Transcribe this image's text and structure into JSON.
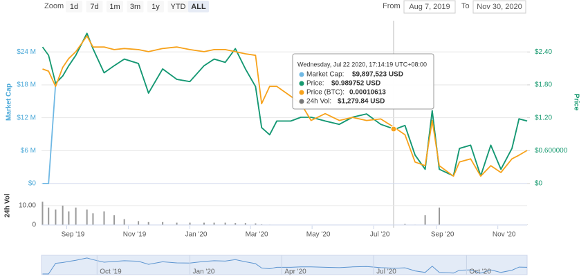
{
  "toolbar": {
    "zoom_label": "Zoom",
    "buttons": [
      "1d",
      "7d",
      "1m",
      "3m",
      "1y",
      "YTD",
      "ALL"
    ],
    "active": "ALL",
    "from_label": "From",
    "from": "Aug 7, 2019",
    "to_label": "To",
    "to": "Nov 30, 2020"
  },
  "tooltip": {
    "header": "Wednesday, Jul 22 2020, 17:14:19 UTC+08:00",
    "items": [
      {
        "label": "Market Cap:",
        "value": "$9,897,523 USD"
      },
      {
        "label": "Price:",
        "value": "$0.989752 USD"
      },
      {
        "label": "Price (BTC):",
        "value": "0.00010613"
      },
      {
        "label": "24h Vol:",
        "value": "$1,279.84 USD"
      }
    ]
  },
  "chart_data": [
    {
      "type": "line",
      "y_label": "Market Cap",
      "y2_label": "Price",
      "x": [
        "2019-08-08",
        "2019-08-14",
        "2019-08-21",
        "2019-08-28",
        "2019-09-03",
        "2019-09-10",
        "2019-09-21",
        "2019-09-27",
        "2019-10-08",
        "2019-10-18",
        "2019-10-28",
        "2019-11-11",
        "2019-11-21",
        "2019-12-05",
        "2019-12-19",
        "2020-01-01",
        "2020-01-15",
        "2020-01-25",
        "2020-02-05",
        "2020-02-15",
        "2020-02-25",
        "2020-03-06",
        "2020-03-12",
        "2020-03-20",
        "2020-03-27",
        "2020-04-10",
        "2020-04-20",
        "2020-04-30",
        "2020-05-14",
        "2020-05-28",
        "2020-06-10",
        "2020-06-24",
        "2020-07-08",
        "2020-07-22",
        "2020-08-01",
        "2020-08-11",
        "2020-08-21",
        "2020-08-28",
        "2020-09-04",
        "2020-09-18",
        "2020-09-24",
        "2020-10-05",
        "2020-10-15",
        "2020-10-25",
        "2020-11-04",
        "2020-11-15",
        "2020-11-22",
        "2020-11-30"
      ],
      "xlim": [
        "2019-08-07",
        "2020-11-30"
      ],
      "xticks": [
        {
          "value": "2019-09-01",
          "label": "Sep '19"
        },
        {
          "value": "2019-11-01",
          "label": "Nov '19"
        },
        {
          "value": "2020-01-01",
          "label": "Jan '20"
        },
        {
          "value": "2020-03-01",
          "label": "Mar '20"
        },
        {
          "value": "2020-05-01",
          "label": "May '20"
        },
        {
          "value": "2020-07-01",
          "label": "Jul '20"
        },
        {
          "value": "2020-09-01",
          "label": "Sep '20"
        },
        {
          "value": "2020-11-01",
          "label": "Nov '20"
        }
      ],
      "ylim": [
        0,
        29700000
      ],
      "yticks": [
        {
          "value": 0,
          "label": "$0"
        },
        {
          "value": 6000000,
          "label": "$6 M"
        },
        {
          "value": 12000000,
          "label": "$12 M"
        },
        {
          "value": 18000000,
          "label": "$18 M"
        },
        {
          "value": 24000000,
          "label": "$24 M"
        }
      ],
      "y2lim": [
        0,
        2.97
      ],
      "y2ticks": [
        {
          "value": 0,
          "label": "$0"
        },
        {
          "value": 0.6,
          "label": "$0.600000"
        },
        {
          "value": 1.2,
          "label": "$1.20"
        },
        {
          "value": 1.8,
          "label": "$1.80"
        },
        {
          "value": 2.4,
          "label": "$2.40"
        }
      ],
      "y3lim": [
        0,
        0.00031
      ],
      "grid": true,
      "series": [
        {
          "color": "#6fb8e4",
          "axis": "y",
          "values": [
            0,
            0,
            18300000,
            19600000,
            21500000,
            23400000,
            27400000,
            24600000,
            20200000,
            21500000,
            22700000,
            21900000,
            16500000,
            20900000,
            19000000,
            18600000,
            21500000,
            22700000,
            22100000,
            24600000,
            20900000,
            17700000,
            10200000,
            8900000,
            11400000,
            11400000,
            12100000,
            12100000,
            11400000,
            10800000,
            12100000,
            12700000,
            10800000,
            9897523,
            10600000,
            5200000,
            2600000,
            13300000,
            2600000,
            1400000,
            6400000,
            7000000,
            1400000,
            7000000,
            2600000,
            6400000,
            11800000,
            11400000
          ]
        },
        {
          "color": "#16996f",
          "axis": "y2",
          "values": [
            2.49,
            2.34,
            1.83,
            1.96,
            2.15,
            2.34,
            2.74,
            2.46,
            2.02,
            2.15,
            2.27,
            2.19,
            1.65,
            2.09,
            1.9,
            1.86,
            2.15,
            2.27,
            2.21,
            2.46,
            2.09,
            1.77,
            1.02,
            0.89,
            1.14,
            1.14,
            1.21,
            1.21,
            1.14,
            1.08,
            1.21,
            1.27,
            1.08,
            0.989752,
            1.06,
            0.52,
            0.26,
            1.33,
            0.26,
            0.14,
            0.64,
            0.7,
            0.14,
            0.7,
            0.26,
            0.64,
            1.18,
            1.14
          ]
        },
        {
          "color": "#f7a21b",
          "axis": "y3",
          "values": [
            0.000218,
            0.000214,
            0.000185,
            0.000221,
            0.000238,
            0.000251,
            0.000281,
            0.00026,
            0.00026,
            0.000255,
            0.000257,
            0.000255,
            0.000251,
            0.000257,
            0.00026,
            0.000255,
            0.000251,
            0.000255,
            0.000255,
            0.000251,
            0.000247,
            0.000244,
            0.000152,
            0.000185,
            0.000185,
            0.000166,
            0.000152,
            0.00012,
            0.000133,
            0.00012,
            0.000126,
            0.00012,
            0.000123,
            0.00010613,
            9.3e-05,
            4.1e-05,
            3.4e-05,
            0.00012,
            3.4e-05,
            1.4e-05,
            4.1e-05,
            4.7e-05,
            1.4e-05,
            3.4e-05,
            2.1e-05,
            4.7e-05,
            5.4e-05,
            6.3e-05
          ]
        }
      ],
      "navigator": {
        "xticks": [
          {
            "value": "2019-10-01",
            "label": "Oct '19"
          },
          {
            "value": "2020-01-01",
            "label": "Jan '20"
          },
          {
            "value": "2020-04-01",
            "label": "Apr '20"
          },
          {
            "value": "2020-07-01",
            "label": "Jul '20"
          },
          {
            "value": "2020-10-01",
            "label": "Oct '20"
          }
        ]
      }
    },
    {
      "type": "bar",
      "y_label": "24h Vol",
      "x": [
        "2019-08-08",
        "2019-08-14",
        "2019-08-21",
        "2019-08-28",
        "2019-09-03",
        "2019-09-10",
        "2019-09-21",
        "2019-09-27",
        "2019-10-08",
        "2019-10-18",
        "2019-10-28",
        "2019-11-11",
        "2019-11-21",
        "2019-12-05",
        "2019-12-19",
        "2020-01-01",
        "2020-01-15",
        "2020-01-25",
        "2020-02-05",
        "2020-02-15",
        "2020-02-25",
        "2020-03-06",
        "2020-03-12",
        "2020-03-20",
        "2020-03-27",
        "2020-04-10",
        "2020-04-20",
        "2020-04-30",
        "2020-05-14",
        "2020-05-28",
        "2020-06-10",
        "2020-06-24",
        "2020-07-08",
        "2020-07-22",
        "2020-08-01",
        "2020-08-11",
        "2020-08-21",
        "2020-08-28",
        "2020-09-04",
        "2020-09-18",
        "2020-09-24",
        "2020-10-05",
        "2020-10-15",
        "2020-10-25",
        "2020-11-04",
        "2020-11-15",
        "2020-11-22",
        "2020-11-30"
      ],
      "xlim": [
        "2019-08-07",
        "2020-11-30"
      ],
      "values": [
        12,
        9,
        8,
        10,
        7,
        9,
        8,
        6,
        7,
        5,
        3,
        2,
        1.5,
        1.5,
        1.2,
        1.2,
        1.2,
        1.2,
        1.2,
        1.0,
        1.0,
        0.8,
        0.3,
        0.2,
        0.1,
        0.1,
        0.1,
        0.1,
        0.1,
        0.1,
        0.1,
        0.1,
        0.1,
        0.1,
        0.5,
        0.2,
        5,
        0.1,
        9,
        0.1,
        0.1,
        0.1,
        0.1,
        0.1,
        0.1,
        0.1,
        0.1,
        0.1
      ],
      "color": "#999999",
      "ylim": [
        0,
        20
      ],
      "yticks": [
        0,
        {
          "value": 10,
          "label": "10.00"
        }
      ]
    }
  ]
}
